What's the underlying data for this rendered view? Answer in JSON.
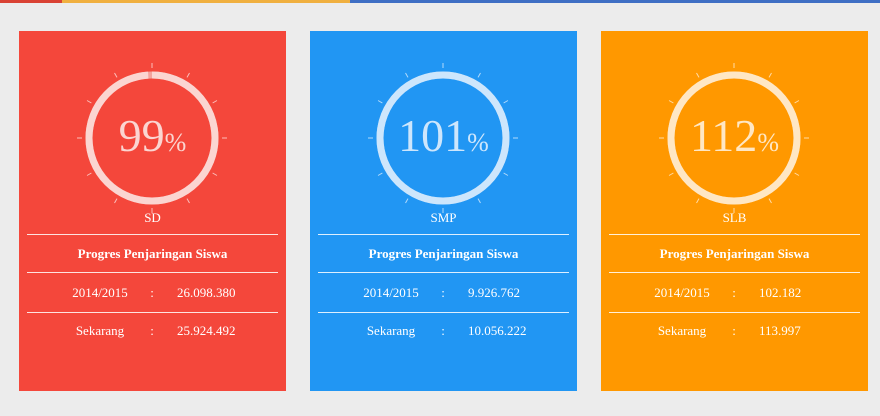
{
  "colors": {
    "page_bg": "#ececec",
    "topbar": [
      "#d94234",
      "#ececec",
      "#f0b040",
      "#3f6fc4"
    ]
  },
  "section_title": "Progres Penjaringan Siswa",
  "cards": [
    {
      "level": "SD",
      "percent": "99",
      "percent_symbol": "%",
      "progress": 0.99,
      "bg": "#f4473b",
      "track": "#f4a39d",
      "arc": "#fbd5d1",
      "text": "#fbd5d1",
      "rows": [
        {
          "label": "2014/2015",
          "sep": ":",
          "value": "26.098.380"
        },
        {
          "label": "Sekarang",
          "sep": ":",
          "value": "25.924.492"
        }
      ]
    },
    {
      "level": "SMP",
      "percent": "101",
      "percent_symbol": "%",
      "progress": 1.0,
      "bg": "#2196f3",
      "track": "#90c9f8",
      "arc": "#cde6fc",
      "text": "#cde6fc",
      "rows": [
        {
          "label": "2014/2015",
          "sep": ":",
          "value": "9.926.762"
        },
        {
          "label": "Sekarang",
          "sep": ":",
          "value": "10.056.222"
        }
      ]
    },
    {
      "level": "SLB",
      "percent": "112",
      "percent_symbol": "%",
      "progress": 1.0,
      "bg": "#ff9800",
      "track": "#ffcb80",
      "arc": "#ffe7c4",
      "text": "#ffe7c4",
      "rows": [
        {
          "label": "2014/2015",
          "sep": ":",
          "value": "102.182"
        },
        {
          "label": "Sekarang",
          "sep": ":",
          "value": "113.997"
        }
      ]
    }
  ]
}
